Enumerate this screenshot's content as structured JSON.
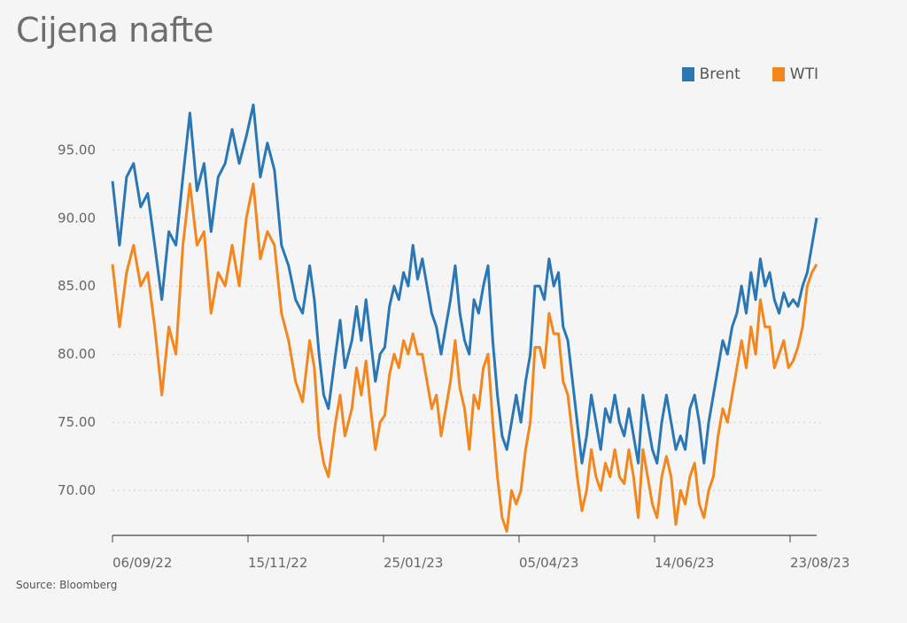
{
  "chart_data": {
    "type": "line",
    "title": "Cijena nafte",
    "source": "Source: Bloomberg",
    "xlabel": "",
    "ylabel": "",
    "x_ticks": [
      "06/09/22",
      "15/11/22",
      "25/01/23",
      "05/04/23",
      "14/06/23",
      "23/08/23"
    ],
    "y_ticks": [
      "70.00",
      "75.00",
      "80.00",
      "85.00",
      "90.00",
      "95.00"
    ],
    "ylim": [
      66.7,
      99.5
    ],
    "grid": "horizontal-dotted",
    "legend_position": "top-right",
    "series": [
      {
        "name": "Brent",
        "color": "#2a77b5",
        "keypoints": [
          [
            0,
            92.7
          ],
          [
            3,
            88.0
          ],
          [
            6,
            93.0
          ],
          [
            9,
            94.0
          ],
          [
            12,
            90.8
          ],
          [
            15,
            91.8
          ],
          [
            18,
            88.0
          ],
          [
            21,
            84.0
          ],
          [
            24,
            89.0
          ],
          [
            27,
            88.0
          ],
          [
            30,
            93.0
          ],
          [
            33,
            97.7
          ],
          [
            36,
            92.0
          ],
          [
            39,
            94.0
          ],
          [
            42,
            89.0
          ],
          [
            45,
            93.0
          ],
          [
            48,
            94.0
          ],
          [
            51,
            96.5
          ],
          [
            54,
            94.0
          ],
          [
            57,
            96.0
          ],
          [
            60,
            98.3
          ],
          [
            63,
            93.0
          ],
          [
            66,
            95.5
          ],
          [
            69,
            93.5
          ],
          [
            72,
            88.0
          ],
          [
            75,
            86.5
          ],
          [
            78,
            84.0
          ],
          [
            81,
            83.0
          ],
          [
            84,
            86.5
          ],
          [
            86,
            84.0
          ],
          [
            88,
            80.0
          ],
          [
            90,
            77.0
          ],
          [
            92,
            76.0
          ],
          [
            95,
            80.0
          ],
          [
            97,
            82.5
          ],
          [
            99,
            79.0
          ],
          [
            102,
            81.0
          ],
          [
            104,
            83.5
          ],
          [
            106,
            81.0
          ],
          [
            108,
            84.0
          ],
          [
            110,
            81.0
          ],
          [
            112,
            78.0
          ],
          [
            114,
            80.0
          ],
          [
            116,
            80.5
          ],
          [
            118,
            83.5
          ],
          [
            120,
            85.0
          ],
          [
            122,
            84.0
          ],
          [
            124,
            86.0
          ],
          [
            126,
            85.0
          ],
          [
            128,
            88.0
          ],
          [
            130,
            85.5
          ],
          [
            132,
            87.0
          ],
          [
            134,
            85.0
          ],
          [
            136,
            83.0
          ],
          [
            138,
            82.0
          ],
          [
            140,
            80.0
          ],
          [
            142,
            82.0
          ],
          [
            144,
            84.0
          ],
          [
            146,
            86.5
          ],
          [
            148,
            83.0
          ],
          [
            150,
            81.0
          ],
          [
            152,
            80.0
          ],
          [
            154,
            84.0
          ],
          [
            156,
            83.0
          ],
          [
            158,
            85.0
          ],
          [
            160,
            86.5
          ],
          [
            162,
            81.0
          ],
          [
            164,
            77.0
          ],
          [
            166,
            74.0
          ],
          [
            168,
            73.0
          ],
          [
            170,
            75.0
          ],
          [
            172,
            77.0
          ],
          [
            174,
            75.0
          ],
          [
            176,
            78.0
          ],
          [
            178,
            80.0
          ],
          [
            180,
            85.0
          ],
          [
            182,
            85.0
          ],
          [
            184,
            84.0
          ],
          [
            186,
            87.0
          ],
          [
            188,
            85.0
          ],
          [
            190,
            86.0
          ],
          [
            192,
            82.0
          ],
          [
            194,
            81.0
          ],
          [
            196,
            78.0
          ],
          [
            198,
            75.0
          ],
          [
            200,
            72.0
          ],
          [
            202,
            74.0
          ],
          [
            204,
            77.0
          ],
          [
            206,
            75.0
          ],
          [
            208,
            73.0
          ],
          [
            210,
            76.0
          ],
          [
            212,
            75.0
          ],
          [
            214,
            77.0
          ],
          [
            216,
            75.0
          ],
          [
            218,
            74.0
          ],
          [
            220,
            76.0
          ],
          [
            222,
            74.0
          ],
          [
            224,
            72.0
          ],
          [
            226,
            77.0
          ],
          [
            228,
            75.0
          ],
          [
            230,
            73.0
          ],
          [
            232,
            72.0
          ],
          [
            234,
            75.0
          ],
          [
            236,
            77.0
          ],
          [
            238,
            75.0
          ],
          [
            240,
            73.0
          ],
          [
            242,
            74.0
          ],
          [
            244,
            73.0
          ],
          [
            246,
            76.0
          ],
          [
            248,
            77.0
          ],
          [
            250,
            75.0
          ],
          [
            252,
            72.0
          ],
          [
            254,
            75.0
          ],
          [
            256,
            77.0
          ],
          [
            258,
            79.0
          ],
          [
            260,
            81.0
          ],
          [
            262,
            80.0
          ],
          [
            264,
            82.0
          ],
          [
            266,
            83.0
          ],
          [
            268,
            85.0
          ],
          [
            270,
            83.0
          ],
          [
            272,
            86.0
          ],
          [
            274,
            84.0
          ],
          [
            276,
            87.0
          ],
          [
            278,
            85.0
          ],
          [
            280,
            86.0
          ],
          [
            282,
            84.0
          ],
          [
            284,
            83.0
          ],
          [
            286,
            84.5
          ],
          [
            288,
            83.5
          ],
          [
            290,
            84.0
          ],
          [
            292,
            83.5
          ],
          [
            294,
            85.0
          ],
          [
            296,
            86.0
          ],
          [
            298,
            88.0
          ],
          [
            300,
            90.0
          ]
        ]
      },
      {
        "name": "WTI",
        "color": "#f2871e",
        "keypoints": [
          [
            0,
            86.6
          ],
          [
            3,
            82.0
          ],
          [
            6,
            86.0
          ],
          [
            9,
            88.0
          ],
          [
            12,
            85.0
          ],
          [
            15,
            86.0
          ],
          [
            18,
            82.0
          ],
          [
            21,
            77.0
          ],
          [
            24,
            82.0
          ],
          [
            27,
            80.0
          ],
          [
            30,
            88.0
          ],
          [
            33,
            92.5
          ],
          [
            36,
            88.0
          ],
          [
            39,
            89.0
          ],
          [
            42,
            83.0
          ],
          [
            45,
            86.0
          ],
          [
            48,
            85.0
          ],
          [
            51,
            88.0
          ],
          [
            54,
            85.0
          ],
          [
            57,
            90.0
          ],
          [
            60,
            92.5
          ],
          [
            63,
            87.0
          ],
          [
            66,
            89.0
          ],
          [
            69,
            88.0
          ],
          [
            72,
            83.0
          ],
          [
            75,
            81.0
          ],
          [
            78,
            78.0
          ],
          [
            81,
            76.5
          ],
          [
            84,
            81.0
          ],
          [
            86,
            79.0
          ],
          [
            88,
            74.0
          ],
          [
            90,
            72.0
          ],
          [
            92,
            71.0
          ],
          [
            95,
            75.0
          ],
          [
            97,
            77.0
          ],
          [
            99,
            74.0
          ],
          [
            102,
            76.0
          ],
          [
            104,
            79.0
          ],
          [
            106,
            77.0
          ],
          [
            108,
            79.5
          ],
          [
            110,
            76.0
          ],
          [
            112,
            73.0
          ],
          [
            114,
            75.0
          ],
          [
            116,
            75.5
          ],
          [
            118,
            78.5
          ],
          [
            120,
            80.0
          ],
          [
            122,
            79.0
          ],
          [
            124,
            81.0
          ],
          [
            126,
            80.0
          ],
          [
            128,
            81.5
          ],
          [
            130,
            80.0
          ],
          [
            132,
            80.0
          ],
          [
            134,
            78.0
          ],
          [
            136,
            76.0
          ],
          [
            138,
            77.0
          ],
          [
            140,
            74.0
          ],
          [
            142,
            76.0
          ],
          [
            144,
            78.0
          ],
          [
            146,
            81.0
          ],
          [
            148,
            77.5
          ],
          [
            150,
            76.0
          ],
          [
            152,
            73.0
          ],
          [
            154,
            77.0
          ],
          [
            156,
            76.0
          ],
          [
            158,
            79.0
          ],
          [
            160,
            80.0
          ],
          [
            162,
            75.0
          ],
          [
            164,
            71.0
          ],
          [
            166,
            68.0
          ],
          [
            168,
            67.0
          ],
          [
            170,
            70.0
          ],
          [
            172,
            69.0
          ],
          [
            174,
            70.0
          ],
          [
            176,
            73.0
          ],
          [
            178,
            75.0
          ],
          [
            180,
            80.5
          ],
          [
            182,
            80.5
          ],
          [
            184,
            79.0
          ],
          [
            186,
            83.0
          ],
          [
            188,
            81.5
          ],
          [
            190,
            81.5
          ],
          [
            192,
            78.0
          ],
          [
            194,
            77.0
          ],
          [
            196,
            74.0
          ],
          [
            198,
            71.0
          ],
          [
            200,
            68.5
          ],
          [
            202,
            70.0
          ],
          [
            204,
            73.0
          ],
          [
            206,
            71.0
          ],
          [
            208,
            70.0
          ],
          [
            210,
            72.0
          ],
          [
            212,
            71.0
          ],
          [
            214,
            73.0
          ],
          [
            216,
            71.0
          ],
          [
            218,
            70.5
          ],
          [
            220,
            73.0
          ],
          [
            222,
            71.0
          ],
          [
            224,
            68.0
          ],
          [
            226,
            73.0
          ],
          [
            228,
            71.0
          ],
          [
            230,
            69.0
          ],
          [
            232,
            68.0
          ],
          [
            234,
            71.0
          ],
          [
            236,
            72.5
          ],
          [
            238,
            71.0
          ],
          [
            240,
            67.5
          ],
          [
            242,
            70.0
          ],
          [
            244,
            69.0
          ],
          [
            246,
            71.0
          ],
          [
            248,
            72.0
          ],
          [
            250,
            69.0
          ],
          [
            252,
            68.0
          ],
          [
            254,
            70.0
          ],
          [
            256,
            71.0
          ],
          [
            258,
            74.0
          ],
          [
            260,
            76.0
          ],
          [
            262,
            75.0
          ],
          [
            264,
            77.0
          ],
          [
            266,
            79.0
          ],
          [
            268,
            81.0
          ],
          [
            270,
            79.0
          ],
          [
            272,
            82.0
          ],
          [
            274,
            80.0
          ],
          [
            276,
            84.0
          ],
          [
            278,
            82.0
          ],
          [
            280,
            82.0
          ],
          [
            282,
            79.0
          ],
          [
            284,
            80.0
          ],
          [
            286,
            81.0
          ],
          [
            288,
            79.0
          ],
          [
            290,
            79.5
          ],
          [
            292,
            80.5
          ],
          [
            294,
            82.0
          ],
          [
            296,
            85.0
          ],
          [
            298,
            86.0
          ],
          [
            300,
            86.6
          ]
        ]
      }
    ]
  }
}
